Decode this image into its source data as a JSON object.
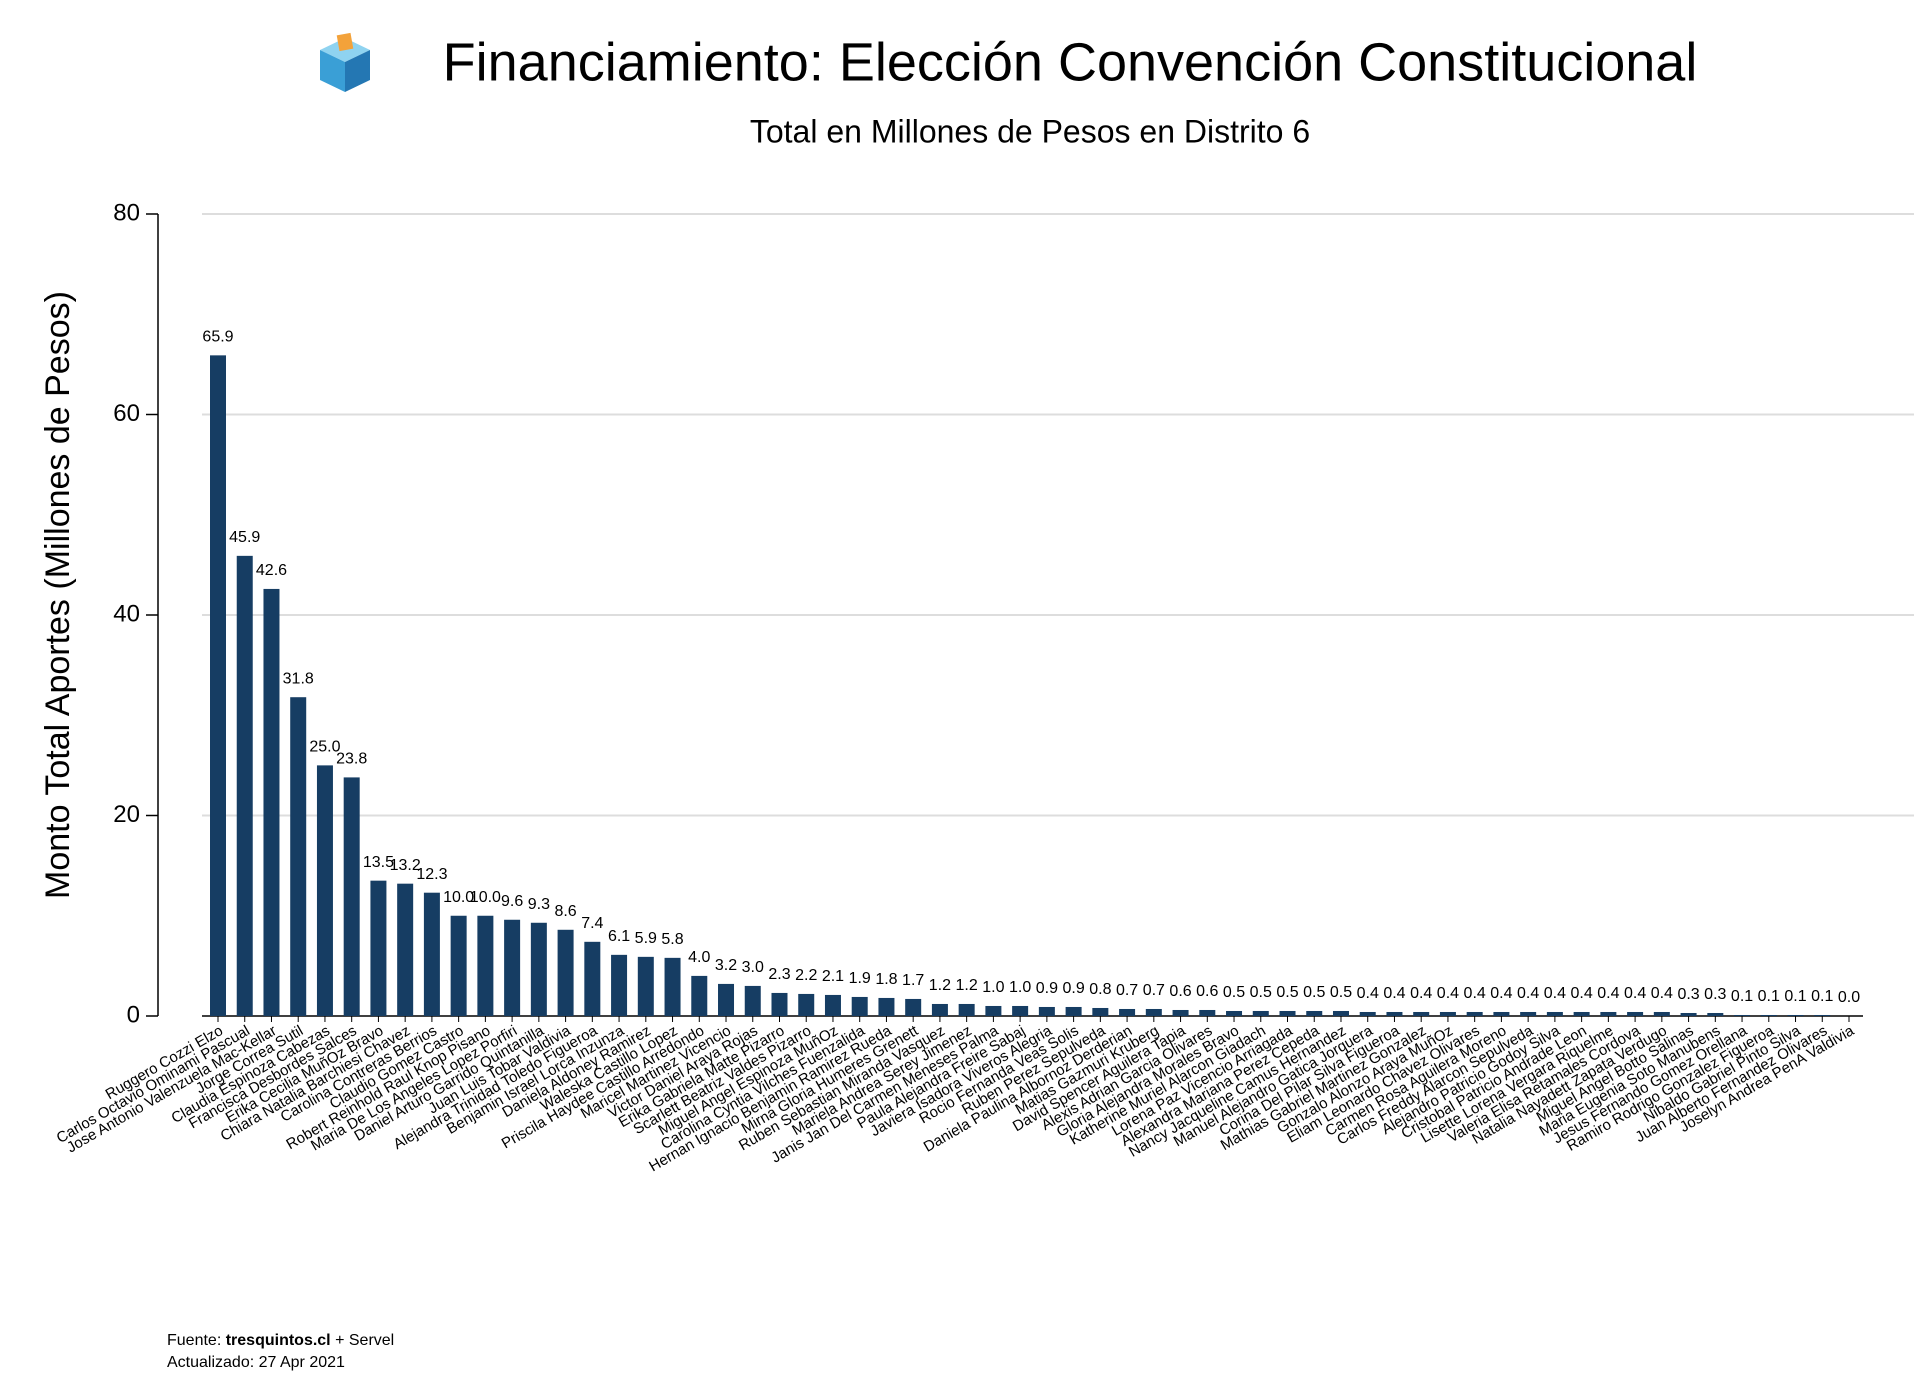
{
  "chart_data": {
    "type": "bar",
    "title": "Financiamiento: Elección Convención Constitucional",
    "subtitle": "Total en Millones de Pesos en Distrito 6",
    "y_label": "Monto Total Aportes (Millones de Pesos)",
    "source_label": "Fuente:",
    "source_name": "tresquintos.cl",
    "source_extra": "+ Servel",
    "updated": "Actualizado: 27 Apr 2021",
    "color": "#163d63",
    "grid": true,
    "ylim": [
      0,
      80
    ],
    "yticks": [
      0,
      20,
      40,
      60,
      80
    ],
    "categories": [
      "Ruggero Cozzi Elzo",
      "Carlos Octavio Ominami Pascual",
      "Jose Antonio Valenzuela Mac-Kellar",
      "Jorge Correa Sutil",
      "Claudia Espinoza Cabezas",
      "Francisca Desbordes Salces",
      "Erika Cecilia MuñOz Bravo",
      "Chiara Natalia Barchiesi Chavez",
      "Carolina Contreras Berrios",
      "Claudio Gomez Castro",
      "Robert Reinhold Raul Knop Pisano",
      "Maria De Los Angeles Lopez Porfiri",
      "Daniel Arturo Garrido Quintanilla",
      "Juan Luis Tobar Valdivia",
      "Alejandra Trinidad Toledo Figueroa",
      "Benjamin Israel Lorca Inzunza",
      "Daniela Aldoney Ramirez",
      "Waleska Castillo Lopez",
      "Priscila Haydee Castillo Arredondo",
      "Maricel Martinez Vicencio",
      "Victor Daniel Araya Rojas",
      "Erika Gabriela Matte Pizarro",
      "Scarlett Beatriz Valdes Pizarro",
      "Miguel Angel Espinoza MuñOz",
      "Carolina Cyntia Vilches Fuenzalida",
      "Hernan Ignacio Benjamin Ramirez Rueda",
      "Mirna Gloria Humeres Grenett",
      "Ruben Sebastian Miranda Vasquez",
      "Mariela Andrea Serey Jimenez",
      "Janis Jan Del Carmen Meneses Palma",
      "Paula Alejandra Freire Sabaj",
      "Javiera Isadora Viveros Alegria",
      "Rocio Fernanda Veas Solis",
      "Ruben Perez Sepulveda",
      "Daniela Paulina Albornoz Derderian",
      "Matias Gazmuri Kruberg",
      "David Spencer Aguilera Tapia",
      "Alexis Adrian Garcia Olivares",
      "Gloria Alejandra Morales Bravo",
      "Katherine Muriel Alarcon Giadach",
      "Lorena Paz Vicencio Arriagada",
      "Alexandra Mariana Perez Cepeda",
      "Nancy Jacqueline Camus Hernandez",
      "Manuel Alejandro Gatica Jorquera",
      "Corina Del Pilar Silva Figueroa",
      "Mathias Gabriel Martinez Gonzalez",
      "Gonzalo Alonzo Araya MuñOz",
      "Eliam Leonardo Chavez Olivares",
      "Carmen Rosa Aguilera Moreno",
      "Carlos Freddy Alarcon Sepulveda",
      "Alejandro Patricio Godoy Silva",
      "Cristobal Patricio Andrade Leon",
      "Lisette Lorena Vergara Riquelme",
      "Valeria Elisa Retamales Cordova",
      "Natalia Nayadett Zapata Verdugo",
      "Miguel Angel Botto Salinas",
      "Maria Eugenia Soto Manubens",
      "Jesus Fernando Gomez Orellana",
      "Ramiro Rodrigo Gonzalez Figueroa",
      "Nibaldo Gabriel Pinto Silva",
      "Juan Alberto Fernandez Olivares",
      "Joselyn Andrea PenA Valdivia"
    ],
    "values": [
      65.9,
      45.9,
      42.6,
      31.8,
      25,
      23.8,
      13.5,
      13.2,
      12.3,
      10,
      10,
      9.6,
      9.3,
      8.6,
      7.4,
      6.1,
      5.9,
      5.8,
      4,
      3.2,
      3,
      2.3,
      2.2,
      2.1,
      1.9,
      1.8,
      1.7,
      1.2,
      1.2,
      1,
      1,
      0.9,
      0.9,
      0.8,
      0.7,
      0.7,
      0.6,
      0.6,
      0.5,
      0.5,
      0.5,
      0.5,
      0.5,
      0.4,
      0.4,
      0.4,
      0.4,
      0.4,
      0.4,
      0.4,
      0.4,
      0.4,
      0.4,
      0.4,
      0.4,
      0.3,
      0.3,
      0.1,
      0.1,
      0.1,
      0.1,
      0
    ],
    "value_labels": [
      "65.9",
      "45.9",
      "42.6",
      "31.8",
      "25.0",
      "23.8",
      "13.5",
      "13.2",
      "12.3",
      "10.0",
      "10.0",
      "9.6",
      "9.3",
      "8.6",
      "7.4",
      "6.1",
      "5.9",
      "5.8",
      "4.0",
      "3.2",
      "3.0",
      "2.3",
      "2.2",
      "2.1",
      "1.9",
      "1.8",
      "1.7",
      "1.2",
      "1.2",
      "1.0",
      "1.0",
      "0.9",
      "0.9",
      "0.8",
      "0.7",
      "0.7",
      "0.6",
      "0.6",
      "0.5",
      "0.5",
      "0.5",
      "0.5",
      "0.5",
      "0.4",
      "0.4",
      "0.4",
      "0.4",
      "0.4",
      "0.4",
      "0.4",
      "0.4",
      "0.4",
      "0.4",
      "0.4",
      "0.4",
      "0.3",
      "0.3",
      "0.1",
      "0.1",
      "0.1",
      "0.1",
      "0.0"
    ]
  }
}
